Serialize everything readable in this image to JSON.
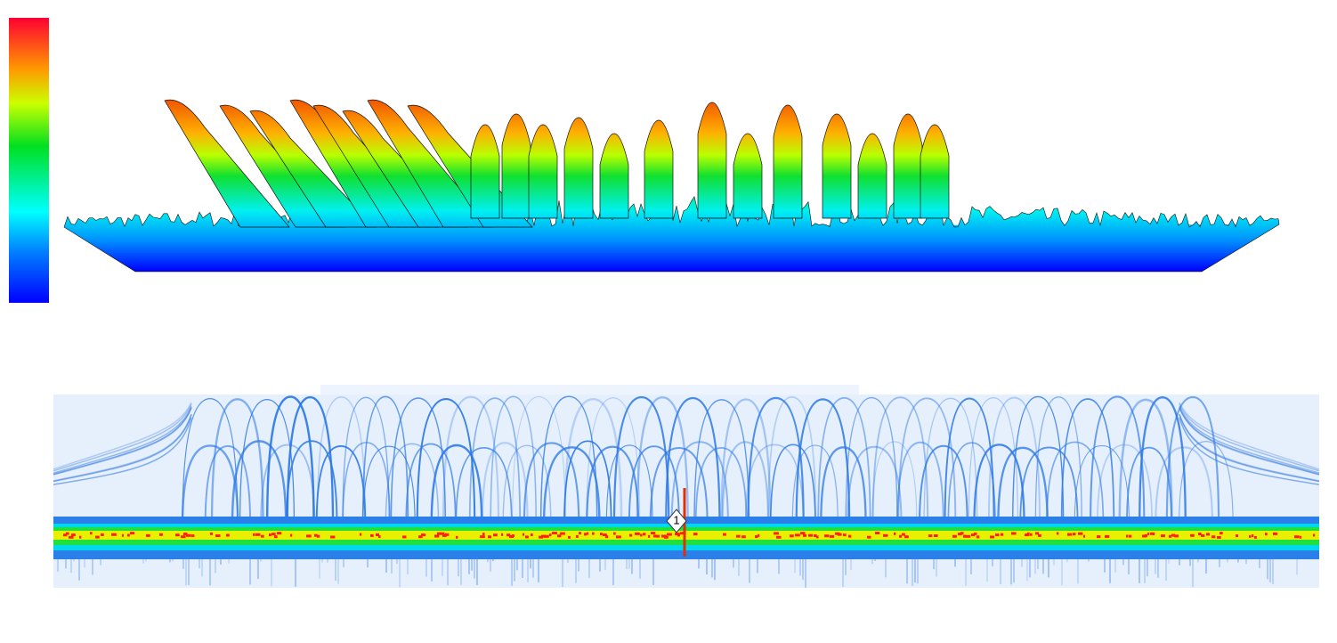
{
  "marker": {
    "label": "1"
  }
}
